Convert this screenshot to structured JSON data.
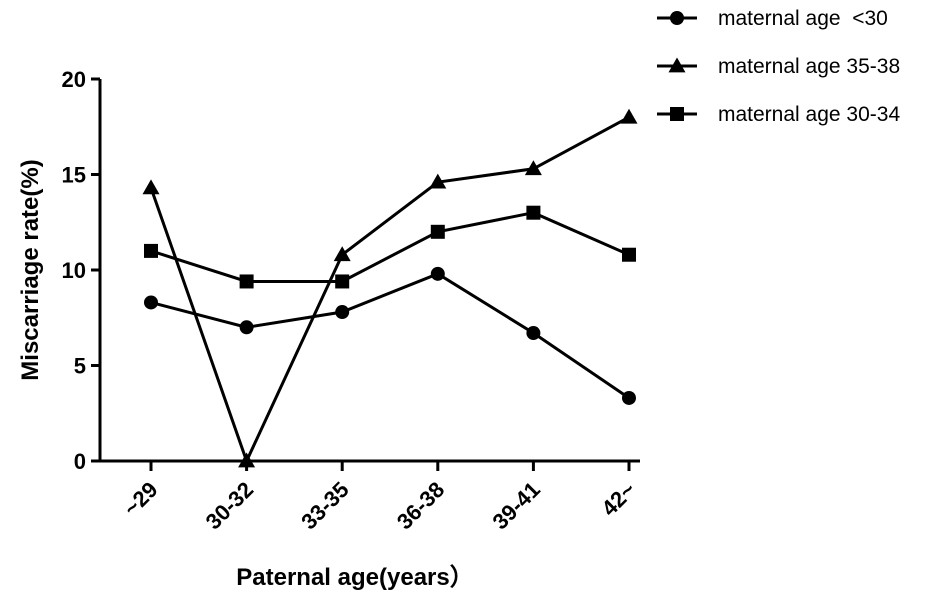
{
  "chart_data": {
    "type": "line",
    "title": "",
    "xlabel": "Paternal age(years）",
    "ylabel": "Miscarriage rate(%)",
    "categories": [
      "~29",
      "30-32",
      "33-35",
      "36-38",
      "39-41",
      "42~"
    ],
    "ylim": [
      0,
      20
    ],
    "yticks": [
      0,
      5,
      10,
      15,
      20
    ],
    "grid": false,
    "legend_position": "top-right",
    "series": [
      {
        "name": "maternal age  <30",
        "marker": "circle",
        "color": "#000000",
        "values": [
          8.3,
          7.0,
          7.8,
          9.8,
          6.7,
          3.3
        ]
      },
      {
        "name": "maternal age 35-38",
        "marker": "triangle",
        "color": "#000000",
        "values": [
          14.3,
          0.0,
          10.8,
          14.6,
          15.3,
          18.0
        ]
      },
      {
        "name": "maternal age 30-34",
        "marker": "square",
        "color": "#000000",
        "values": [
          11.0,
          9.4,
          9.4,
          12.0,
          13.0,
          10.8
        ]
      }
    ]
  }
}
